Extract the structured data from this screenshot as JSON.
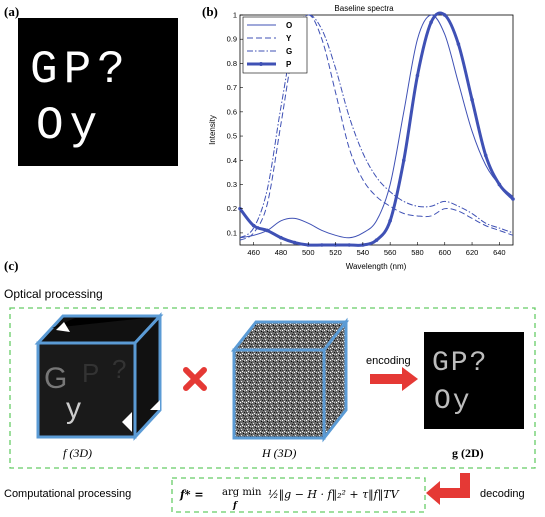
{
  "panels": {
    "a": "(a)",
    "b": "(b)",
    "c": "(c)"
  },
  "image_a": {
    "line1": "GP?",
    "line2": "Oy"
  },
  "chart_data": {
    "type": "line",
    "title": "Baseline spectra",
    "xlabel": "Wavelength (nm)",
    "ylabel": "Intensity",
    "xlim": [
      450,
      650
    ],
    "ylim": [
      0.05,
      1.0
    ],
    "xticks": [
      460,
      480,
      500,
      520,
      540,
      560,
      580,
      600,
      620,
      640
    ],
    "yticks": [
      0.1,
      0.2,
      0.3,
      0.4,
      0.5,
      0.6,
      0.7,
      0.8,
      0.9,
      1
    ],
    "legend_position": "top-left",
    "grid": false,
    "series": [
      {
        "name": "O",
        "style": "solid",
        "x": [
          450,
          460,
          470,
          480,
          490,
          500,
          510,
          520,
          530,
          540,
          550,
          560,
          570,
          580,
          590,
          600,
          610,
          620,
          630,
          640,
          650
        ],
        "y": [
          0.08,
          0.09,
          0.11,
          0.15,
          0.16,
          0.14,
          0.11,
          0.09,
          0.08,
          0.1,
          0.15,
          0.3,
          0.6,
          0.9,
          1.0,
          0.92,
          0.72,
          0.52,
          0.38,
          0.3,
          0.25
        ]
      },
      {
        "name": "Y",
        "style": "dashed",
        "x": [
          450,
          460,
          470,
          480,
          490,
          500,
          510,
          520,
          530,
          540,
          550,
          560,
          570,
          580,
          590,
          600,
          610,
          620,
          630,
          640,
          650
        ],
        "y": [
          0.07,
          0.1,
          0.22,
          0.55,
          0.88,
          1.0,
          0.9,
          0.68,
          0.45,
          0.32,
          0.25,
          0.21,
          0.18,
          0.17,
          0.17,
          0.2,
          0.19,
          0.16,
          0.13,
          0.11,
          0.09
        ]
      },
      {
        "name": "G",
        "style": "dashdot",
        "x": [
          450,
          460,
          470,
          480,
          490,
          500,
          510,
          520,
          530,
          540,
          550,
          560,
          570,
          580,
          590,
          600,
          610,
          620,
          630,
          640,
          650
        ],
        "y": [
          0.08,
          0.12,
          0.28,
          0.62,
          0.92,
          1.0,
          0.94,
          0.78,
          0.58,
          0.43,
          0.33,
          0.27,
          0.23,
          0.21,
          0.21,
          0.23,
          0.21,
          0.18,
          0.14,
          0.12,
          0.1
        ]
      },
      {
        "name": "P",
        "style": "thick-dotted",
        "x": [
          450,
          460,
          470,
          480,
          490,
          500,
          510,
          520,
          530,
          540,
          550,
          560,
          570,
          580,
          590,
          600,
          610,
          620,
          630,
          640,
          650
        ],
        "y": [
          0.2,
          0.13,
          0.11,
          0.08,
          0.06,
          0.05,
          0.05,
          0.05,
          0.05,
          0.05,
          0.07,
          0.15,
          0.4,
          0.75,
          0.97,
          1.0,
          0.88,
          0.65,
          0.42,
          0.3,
          0.24
        ]
      }
    ]
  },
  "section_c": {
    "optical_title": "Optical processing",
    "f_label": "f  (3D)",
    "h_label": "H  (3D)",
    "g_label": "g  (2D)",
    "encoding": "encoding",
    "decoding": "decoding",
    "computational": "Computational processing",
    "cube_letters": {
      "g": "G",
      "y": "y",
      "p": "P",
      "q": "?"
    },
    "g_image": {
      "line1": "GP?",
      "line2": "Oy"
    }
  },
  "formula": {
    "lhs": "f* = ",
    "argmin": "arg min",
    "sub": "f",
    "rhs": "½‖g − H · f‖₂² + τ‖f‖TV"
  },
  "colors": {
    "cube_edge": "#5b9bd5",
    "arrow_red": "#e53935",
    "dash_green": "#66cc66",
    "line_blue": "#3f51b5"
  }
}
